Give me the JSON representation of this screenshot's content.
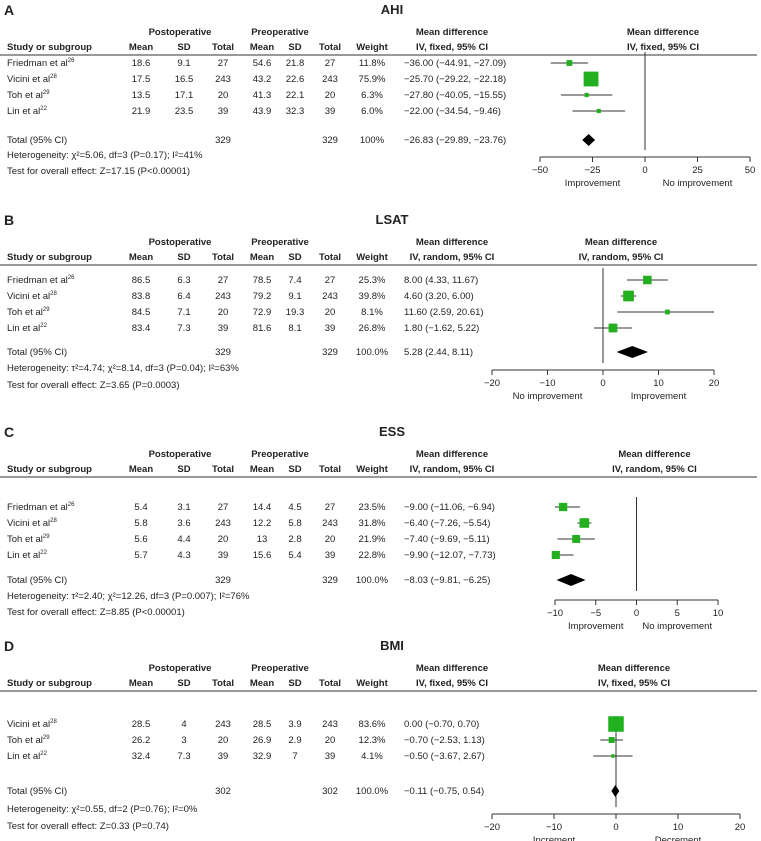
{
  "chart_data": [
    {
      "type": "forest",
      "panel_letter": "A",
      "title": "AHI",
      "group_headers": [
        "Postoperative",
        "Preoperative"
      ],
      "columns": [
        "Study or subgroup",
        "Mean",
        "SD",
        "Total",
        "Mean",
        "SD",
        "Total",
        "Weight"
      ],
      "md_header": [
        "Mean difference",
        "IV, fixed, 95% CI"
      ],
      "plot_header": [
        "Mean difference",
        "IV, fixed, 95% CI"
      ],
      "studies": [
        {
          "name": "Friedman et al",
          "ref": "26",
          "post": [
            "18.6",
            "9.1",
            "27"
          ],
          "pre": [
            "54.6",
            "21.8",
            "27"
          ],
          "weight": "11.8%",
          "ci_text": "−36.00 (−44.91, −27.09)",
          "md": -36.0,
          "lo": -44.91,
          "hi": -27.09,
          "w": 11.8
        },
        {
          "name": "Vicini et al",
          "ref": "28",
          "post": [
            "17.5",
            "16.5",
            "243"
          ],
          "pre": [
            "43.2",
            "22.6",
            "243"
          ],
          "weight": "75.9%",
          "ci_text": "−25.70 (−29.22, −22.18)",
          "md": -25.7,
          "lo": -29.22,
          "hi": -22.18,
          "w": 75.9
        },
        {
          "name": "Toh et al",
          "ref": "29",
          "post": [
            "13.5",
            "17.1",
            "20"
          ],
          "pre": [
            "41.3",
            "22.1",
            "20"
          ],
          "weight": "6.3%",
          "ci_text": "−27.80 (−40.05, −15.55)",
          "md": -27.8,
          "lo": -40.05,
          "hi": -15.55,
          "w": 6.3
        },
        {
          "name": "Lin et al",
          "ref": "22",
          "post": [
            "21.9",
            "23.5",
            "39"
          ],
          "pre": [
            "43.9",
            "32.3",
            "39"
          ],
          "weight": "6.0%",
          "ci_text": "−22.00 (−34.54, −9.46)",
          "md": -22.0,
          "lo": -34.54,
          "hi": -9.46,
          "w": 6.0
        }
      ],
      "total": {
        "label": "Total (95% CI)",
        "post_total": "329",
        "pre_total": "329",
        "weight": "100%",
        "ci_text": "−26.83 (−29.89, −23.76)",
        "md": -26.83,
        "lo": -29.89,
        "hi": -23.76
      },
      "heterogeneity": "Heterogeneity: χ²=5.06, df=3 (P=0.17); I²=41%",
      "overall_effect": "Test for overall effect: Z=17.15 (P<0.00001)",
      "axis": {
        "min": -50,
        "max": 50,
        "ticks": [
          "−50",
          "−25",
          "0",
          "25",
          "50"
        ],
        "tick_values": [
          -50,
          -25,
          0,
          25,
          50
        ],
        "left_label": "Improvement",
        "right_label": "No improvement"
      }
    },
    {
      "type": "forest",
      "panel_letter": "B",
      "title": "LSAT",
      "group_headers": [
        "Postoperative",
        "Preoperative"
      ],
      "columns": [
        "Study or subgroup",
        "Mean",
        "SD",
        "Total",
        "Mean",
        "SD",
        "Total",
        "Weight"
      ],
      "md_header": [
        "Mean difference",
        "IV, random, 95% CI"
      ],
      "plot_header": [
        "Mean difference",
        "IV, random, 95% CI"
      ],
      "studies": [
        {
          "name": "Friedman et al",
          "ref": "26",
          "post": [
            "86.5",
            "6.3",
            "27"
          ],
          "pre": [
            "78.5",
            "7.4",
            "27"
          ],
          "weight": "25.3%",
          "ci_text": "8.00 (4.33, 11.67)",
          "md": 8.0,
          "lo": 4.33,
          "hi": 11.67,
          "w": 25.3
        },
        {
          "name": "Vicini et al",
          "ref": "28",
          "post": [
            "83.8",
            "6.4",
            "243"
          ],
          "pre": [
            "79.2",
            "9.1",
            "243"
          ],
          "weight": "39.8%",
          "ci_text": "4.60 (3.20, 6.00)",
          "md": 4.6,
          "lo": 3.2,
          "hi": 6.0,
          "w": 39.8
        },
        {
          "name": "Toh et al",
          "ref": "29",
          "post": [
            "84.5",
            "7.1",
            "20"
          ],
          "pre": [
            "72.9",
            "19.3",
            "20"
          ],
          "weight": "8.1%",
          "ci_text": "11.60 (2.59, 20.61)",
          "md": 11.6,
          "lo": 2.59,
          "hi": 20.61,
          "w": 8.1
        },
        {
          "name": "Lin et al",
          "ref": "22",
          "post": [
            "83.4",
            "7.3",
            "39"
          ],
          "pre": [
            "81.6",
            "8.1",
            "39"
          ],
          "weight": "26.8%",
          "ci_text": "1.80 (−1.62, 5.22)",
          "md": 1.8,
          "lo": -1.62,
          "hi": 5.22,
          "w": 26.8
        }
      ],
      "total": {
        "label": "Total (95% CI)",
        "post_total": "329",
        "pre_total": "329",
        "weight": "100.0%",
        "ci_text": "5.28 (2.44, 8.11)",
        "md": 5.28,
        "lo": 2.44,
        "hi": 8.11
      },
      "heterogeneity": "Heterogeneity: τ²=4.74; χ²=8.14, df=3 (P=0.04); I²=63%",
      "overall_effect": "Test for overall effect: Z=3.65 (P=0.0003)",
      "axis": {
        "min": -20,
        "max": 20,
        "ticks": [
          "−20",
          "−10",
          "0",
          "10",
          "20"
        ],
        "tick_values": [
          -20,
          -10,
          0,
          10,
          20
        ],
        "left_label": "No improvement",
        "right_label": "Improvement"
      }
    },
    {
      "type": "forest",
      "panel_letter": "C",
      "title": "ESS",
      "group_headers": [
        "Postoperative",
        "Preoperative"
      ],
      "columns": [
        "Study or subgroup",
        "Mean",
        "SD",
        "Total",
        "Mean",
        "SD",
        "Total",
        "Weight"
      ],
      "md_header": [
        "Mean difference",
        "IV, random, 95% CI"
      ],
      "plot_header": [
        "Mean difference",
        "IV, random, 95% CI"
      ],
      "studies": [
        {
          "name": "Friedman et al",
          "ref": "26",
          "post": [
            "5.4",
            "3.1",
            "27"
          ],
          "pre": [
            "14.4",
            "4.5",
            "27"
          ],
          "weight": "23.5%",
          "ci_text": "−9.00 (−11.06, −6.94)",
          "md": -9.0,
          "lo": -11.06,
          "hi": -6.94,
          "w": 23.5
        },
        {
          "name": "Vicini et al",
          "ref": "28",
          "post": [
            "5.8",
            "3.6",
            "243"
          ],
          "pre": [
            "12.2",
            "5.8",
            "243"
          ],
          "weight": "31.8%",
          "ci_text": "−6.40 (−7.26, −5.54)",
          "md": -6.4,
          "lo": -7.26,
          "hi": -5.54,
          "w": 31.8
        },
        {
          "name": "Toh et al",
          "ref": "29",
          "post": [
            "5.6",
            "4.4",
            "20"
          ],
          "pre": [
            "13",
            "2.8",
            "20"
          ],
          "weight": "21.9%",
          "ci_text": "−7.40 (−9.69, −5.11)",
          "md": -7.4,
          "lo": -9.69,
          "hi": -5.11,
          "w": 21.9
        },
        {
          "name": "Lin et al",
          "ref": "22",
          "post": [
            "5.7",
            "4.3",
            "39"
          ],
          "pre": [
            "15.6",
            "5.4",
            "39"
          ],
          "weight": "22.8%",
          "ci_text": "−9.90 (−12.07, −7.73)",
          "md": -9.9,
          "lo": -12.07,
          "hi": -7.73,
          "w": 22.8
        }
      ],
      "total": {
        "label": "Total (95% CI)",
        "post_total": "329",
        "pre_total": "329",
        "weight": "100.0%",
        "ci_text": "−8.03 (−9.81, −6.25)",
        "md": -8.03,
        "lo": -9.81,
        "hi": -6.25
      },
      "heterogeneity": "Heterogeneity: τ²=2.40; χ²=12.26, df=3 (P=0.007); I²=76%",
      "overall_effect": "Test for overall effect: Z=8.85 (P<0.00001)",
      "axis": {
        "min": -10,
        "max": 10,
        "ticks": [
          "−10",
          "−5",
          "0",
          "5",
          "10"
        ],
        "tick_values": [
          -10,
          -5,
          0,
          5,
          10
        ],
        "left_label": "Improvement",
        "right_label": "No improvement"
      }
    },
    {
      "type": "forest",
      "panel_letter": "D",
      "title": "BMI",
      "group_headers": [
        "Postoperative",
        "Preoperative"
      ],
      "columns": [
        "Study or subgroup",
        "Mean",
        "SD",
        "Total",
        "Mean",
        "SD",
        "Total",
        "Weight"
      ],
      "md_header": [
        "Mean difference",
        "IV, fixed, 95% CI"
      ],
      "plot_header": [
        "Mean difference",
        "IV, fixed, 95% CI"
      ],
      "studies": [
        {
          "name": "Vicini et al",
          "ref": "28",
          "post": [
            "28.5",
            "4",
            "243"
          ],
          "pre": [
            "28.5",
            "3.9",
            "243"
          ],
          "weight": "83.6%",
          "ci_text": "0.00 (−0.70, 0.70)",
          "md": 0.0,
          "lo": -0.7,
          "hi": 0.7,
          "w": 83.6
        },
        {
          "name": "Toh et al",
          "ref": "29",
          "post": [
            "26.2",
            "3",
            "20"
          ],
          "pre": [
            "26.9",
            "2.9",
            "20"
          ],
          "weight": "12.3%",
          "ci_text": "−0.70 (−2.53, 1.13)",
          "md": -0.7,
          "lo": -2.53,
          "hi": 1.13,
          "w": 12.3
        },
        {
          "name": "Lin et al",
          "ref": "22",
          "post": [
            "32.4",
            "7.3",
            "39"
          ],
          "pre": [
            "32.9",
            "7",
            "39"
          ],
          "weight": "4.1%",
          "ci_text": "−0.50 (−3.67, 2.67)",
          "md": -0.5,
          "lo": -3.67,
          "hi": 2.67,
          "w": 4.1
        }
      ],
      "total": {
        "label": "Total (95% CI)",
        "post_total": "302",
        "pre_total": "302",
        "weight": "100.0%",
        "ci_text": "−0.11 (−0.75, 0.54)",
        "md": -0.11,
        "lo": -0.75,
        "hi": 0.54
      },
      "heterogeneity": "Heterogeneity: χ²=0.55, df=2 (P=0.76); I²=0%",
      "overall_effect": "Test for overall effect: Z=0.33 (P=0.74)",
      "axis": {
        "min": -20,
        "max": 20,
        "ticks": [
          "−20",
          "−10",
          "0",
          "10",
          "20"
        ],
        "tick_values": [
          -20,
          -10,
          0,
          10,
          20
        ],
        "left_label": "Increment",
        "right_label": "Decrement"
      }
    }
  ],
  "colors": {
    "marker": "#22b01e",
    "diamond": "#000000",
    "text": "#222222",
    "line": "#333333"
  }
}
